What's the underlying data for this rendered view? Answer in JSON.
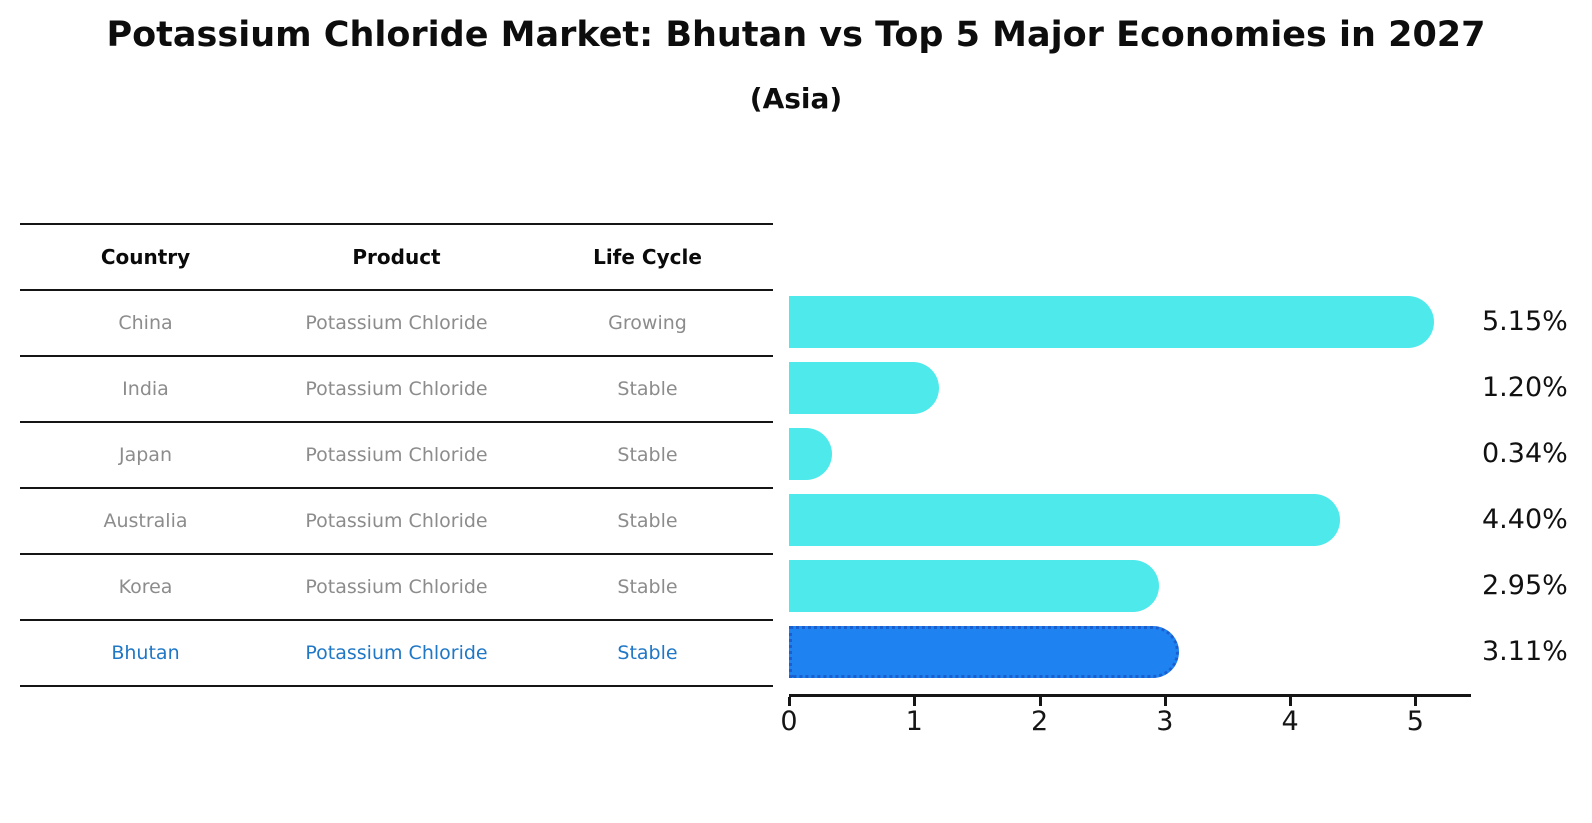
{
  "title": "Potassium Chloride Market: Bhutan vs Top 5 Major Economies in 2027",
  "subtitle": "(Asia)",
  "table": {
    "headers": [
      "Country",
      "Product",
      "Life Cycle"
    ],
    "rows": [
      {
        "country": "China",
        "product": "Potassium Chloride",
        "life_cycle": "Growing",
        "highlighted": false
      },
      {
        "country": "India",
        "product": "Potassium Chloride",
        "life_cycle": "Stable",
        "highlighted": false
      },
      {
        "country": "Japan",
        "product": "Potassium Chloride",
        "life_cycle": "Stable",
        "highlighted": false
      },
      {
        "country": "Australia",
        "product": "Potassium Chloride",
        "life_cycle": "Stable",
        "highlighted": false
      },
      {
        "country": "Korea",
        "product": "Potassium Chloride",
        "life_cycle": "Stable",
        "highlighted": false
      },
      {
        "country": "Bhutan",
        "product": "Potassium Chloride",
        "life_cycle": "Stable",
        "highlighted": true
      }
    ]
  },
  "chart_data": {
    "type": "bar",
    "orientation": "horizontal",
    "title": "Potassium Chloride Market: Bhutan vs Top 5 Major Economies in 2027",
    "subtitle": "(Asia)",
    "categories": [
      "China",
      "India",
      "Japan",
      "Australia",
      "Korea",
      "Bhutan"
    ],
    "values": [
      5.15,
      1.2,
      0.34,
      4.4,
      2.95,
      3.11
    ],
    "value_labels": [
      "5.15%",
      "1.20%",
      "0.34%",
      "4.40%",
      "2.95%",
      "3.11%"
    ],
    "x_ticks": [
      0,
      1,
      2,
      3,
      4,
      5
    ],
    "xlim": [
      0,
      5.42
    ],
    "grid": false,
    "legend": false,
    "highlight_index": 5,
    "highlight_category": "Bhutan"
  },
  "colors": {
    "bar": "#4DE9EB",
    "highlight_bar": "#1E82F0",
    "highlight_border": "#1A5FD0",
    "highlight_text": "#1F77C6",
    "table_text": "#8C8C8C",
    "header_text": "#0A0A0A",
    "axis": "#151515"
  }
}
